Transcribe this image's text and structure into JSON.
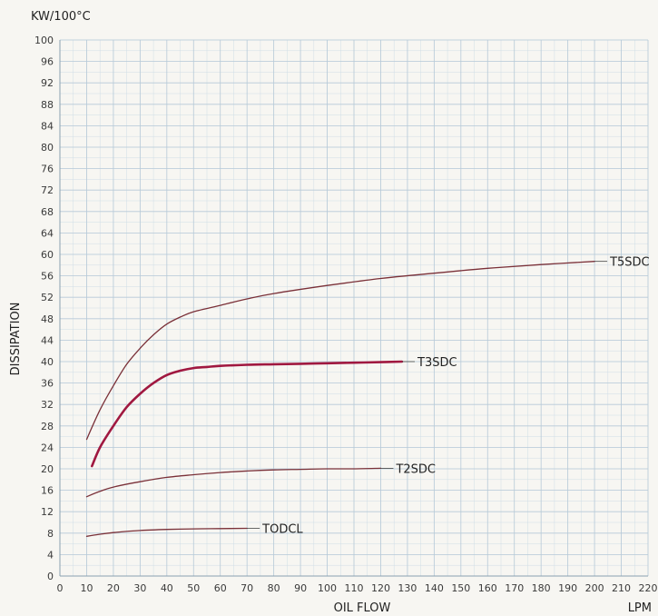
{
  "chart_data": {
    "type": "line",
    "title": "",
    "ylabel_unit": "KW/100°C",
    "ylabel": "DISSIPATION",
    "xlabel": "OIL FLOW",
    "xlabel_unit": "LPM",
    "xlim": [
      0,
      220
    ],
    "ylim": [
      0,
      100
    ],
    "x_ticks": [
      0,
      10,
      20,
      30,
      40,
      50,
      60,
      70,
      80,
      90,
      100,
      110,
      120,
      130,
      140,
      150,
      160,
      170,
      180,
      190,
      200,
      210,
      220
    ],
    "y_ticks": [
      0,
      4,
      8,
      12,
      16,
      20,
      24,
      28,
      32,
      36,
      40,
      44,
      48,
      52,
      56,
      60,
      64,
      68,
      72,
      76,
      80,
      84,
      88,
      92,
      96,
      100
    ],
    "grid": true,
    "legend": "none",
    "series": [
      {
        "name": "T5SDC",
        "color": "#7a3038",
        "x": [
          10,
          15,
          20,
          25,
          30,
          35,
          40,
          45,
          50,
          60,
          70,
          80,
          100,
          120,
          140,
          160,
          180,
          200
        ],
        "y": [
          25.5,
          31,
          35.5,
          39.5,
          42.5,
          45,
          47,
          48.3,
          49.3,
          50.5,
          51.7,
          52.7,
          54.2,
          55.5,
          56.5,
          57.4,
          58.1,
          58.7
        ]
      },
      {
        "name": "T3SDC",
        "color": "#a01840",
        "x": [
          12,
          15,
          20,
          25,
          30,
          35,
          40,
          45,
          50,
          55,
          60,
          70,
          80,
          90,
          100,
          110,
          120,
          128
        ],
        "y": [
          20.5,
          24,
          28,
          31.5,
          34,
          36,
          37.5,
          38.3,
          38.8,
          39,
          39.2,
          39.4,
          39.5,
          39.6,
          39.7,
          39.8,
          39.9,
          40
        ]
      },
      {
        "name": "T2SDC",
        "color": "#7a3038",
        "x": [
          10,
          15,
          20,
          30,
          40,
          50,
          60,
          70,
          80,
          90,
          100,
          110,
          120
        ],
        "y": [
          14.8,
          15.8,
          16.6,
          17.6,
          18.4,
          18.9,
          19.3,
          19.6,
          19.8,
          19.9,
          20,
          20,
          20.1
        ]
      },
      {
        "name": "TODCL",
        "color": "#7a3038",
        "x": [
          10,
          15,
          20,
          30,
          40,
          50,
          60,
          70
        ],
        "y": [
          7.4,
          7.8,
          8.1,
          8.5,
          8.7,
          8.8,
          8.85,
          8.9
        ]
      }
    ]
  }
}
